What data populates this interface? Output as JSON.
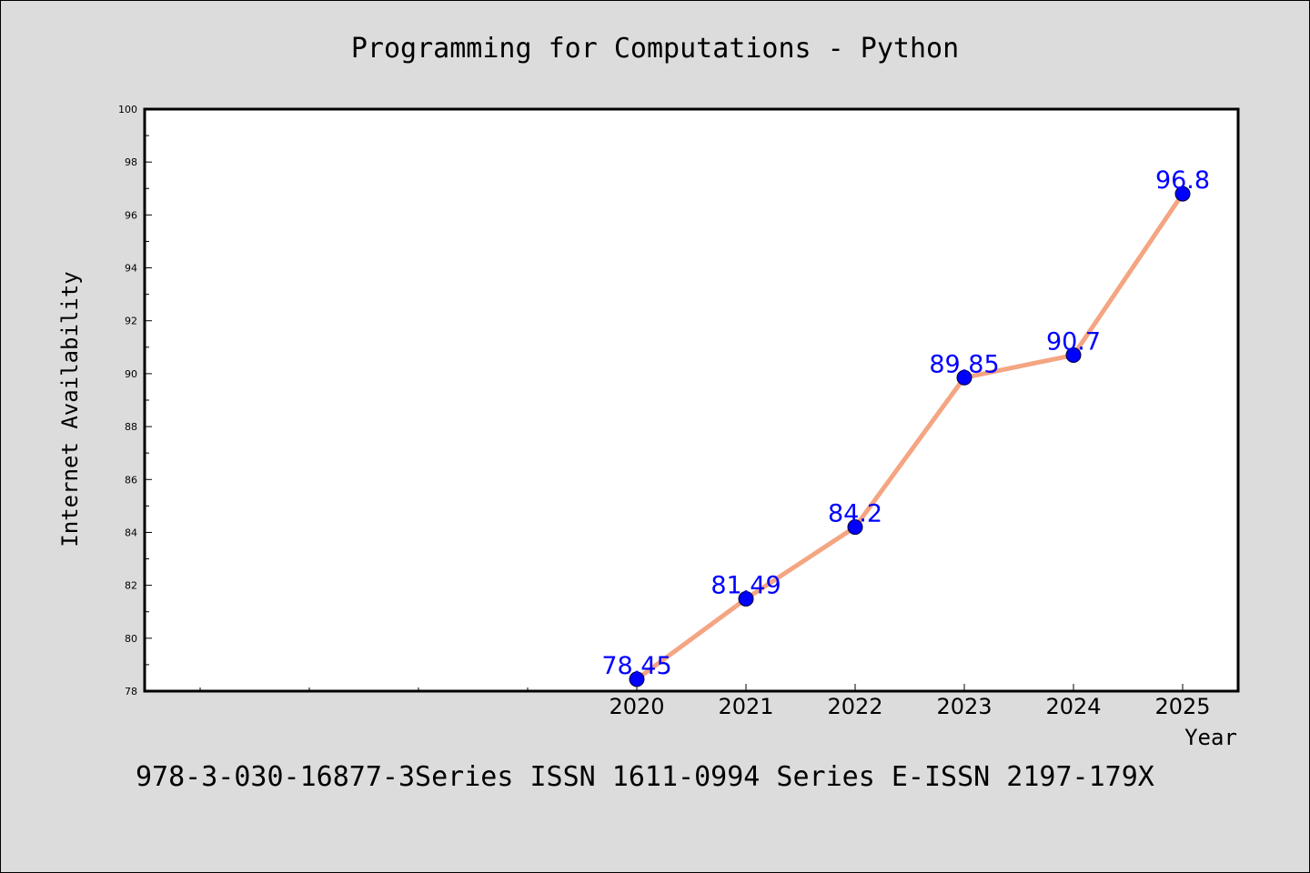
{
  "chart_data": {
    "type": "line",
    "title": "Programming for Computations - Python",
    "xlabel": "Year",
    "ylabel": "Internet Availability",
    "categories": [
      "2020",
      "2021",
      "2022",
      "2023",
      "2024",
      "2025"
    ],
    "series": [
      {
        "values": [
          78.45,
          81.49,
          84.2,
          89.85,
          90.7,
          96.8
        ],
        "data_labels": [
          "78.45",
          "81.49",
          "84.2",
          "89.85",
          "90.7",
          "96.8"
        ]
      }
    ],
    "ylim": [
      78,
      100
    ],
    "yticks": [
      "78",
      "80",
      "82",
      "84",
      "86",
      "88",
      "90",
      "92",
      "94",
      "96",
      "98",
      "100"
    ],
    "grid": false,
    "legend": "none",
    "colors": {
      "line": "#f4a582",
      "marker": "#0000ff",
      "label": "#0000ff",
      "background": "#dcdcdc",
      "plot_background": "#ffffff"
    }
  },
  "footer_note": "978-3-030-16877-3Series ISSN 1611-0994 Series E-ISSN 2197-179X"
}
